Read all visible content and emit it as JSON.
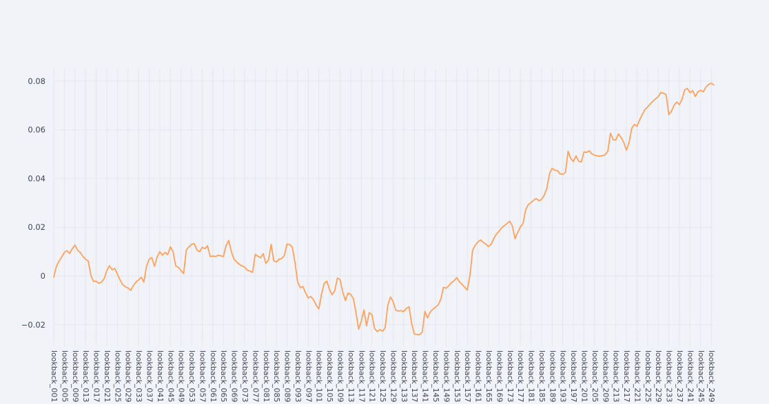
{
  "chart": {
    "title": "",
    "line_color": "#ffa15a",
    "background_color": "#f1f3f8",
    "grid_color": "#e3e6ee",
    "tick_label_color": "#3d4656"
  },
  "chart_data": {
    "type": "line",
    "title": "",
    "xlabel": "",
    "ylabel": "",
    "legend": false,
    "grid": true,
    "n_points": 250,
    "x_tick_every": 4,
    "x_tick_labels": [
      "lookback_001",
      "lookback_005",
      "lookback_009",
      "lookback_013",
      "lookback_017",
      "lookback_021",
      "lookback_025",
      "lookback_029",
      "lookback_033",
      "lookback_037",
      "lookback_041",
      "lookback_045",
      "lookback_049",
      "lookback_053",
      "lookback_057",
      "lookback_061",
      "lookback_065",
      "lookback_069",
      "lookback_073",
      "lookback_077",
      "lookback_081",
      "lookback_085",
      "lookback_089",
      "lookback_093",
      "lookback_097",
      "lookback_101",
      "lookback_105",
      "lookback_109",
      "lookback_113",
      "lookback_117",
      "lookback_121",
      "lookback_125",
      "lookback_129",
      "lookback_133",
      "lookback_137",
      "lookback_141",
      "lookback_145",
      "lookback_149",
      "lookback_153",
      "lookback_157",
      "lookback_161",
      "lookback_165",
      "lookback_169",
      "lookback_173",
      "lookback_177",
      "lookback_181",
      "lookback_185",
      "lookback_189",
      "lookback_193",
      "lookback_197",
      "lookback_201",
      "lookback_205",
      "lookback_209",
      "lookback_213",
      "lookback_217",
      "lookback_221",
      "lookback_225",
      "lookback_229",
      "lookback_233",
      "lookback_237",
      "lookback_241",
      "lookback_245",
      "lookback_249"
    ],
    "y_ticks": [
      -0.02,
      0,
      0.02,
      0.04,
      0.06,
      0.08
    ],
    "y_tick_labels": [
      "−0.02",
      "0",
      "0.02",
      "0.04",
      "0.06",
      "0.08"
    ],
    "ylim": [
      -0.0288,
      0.0853
    ],
    "values": [
      -0.0005,
      0.004,
      0.0061,
      0.0078,
      0.0097,
      0.0104,
      0.0092,
      0.0112,
      0.0127,
      0.0106,
      0.0097,
      0.008,
      0.0069,
      0.0062,
      0.0003,
      -0.0022,
      -0.0021,
      -0.003,
      -0.0025,
      -0.0011,
      0.0022,
      0.0042,
      0.0026,
      0.0031,
      0.0008,
      -0.0016,
      -0.0035,
      -0.0044,
      -0.0049,
      -0.0059,
      -0.004,
      -0.0025,
      -0.0016,
      -0.0005,
      -0.0025,
      0.0041,
      0.0069,
      0.0075,
      0.004,
      0.0078,
      0.01,
      0.0085,
      0.0097,
      0.0088,
      0.012,
      0.01,
      0.0042,
      0.0036,
      0.0022,
      0.001,
      0.0107,
      0.012,
      0.013,
      0.0133,
      0.0107,
      0.0099,
      0.0118,
      0.0112,
      0.0124,
      0.008,
      0.0082,
      0.008,
      0.0085,
      0.0083,
      0.008,
      0.0125,
      0.0146,
      0.01,
      0.0069,
      0.0058,
      0.0048,
      0.0041,
      0.0037,
      0.0024,
      0.002,
      0.0015,
      0.0089,
      0.0081,
      0.0075,
      0.0092,
      0.0052,
      0.0066,
      0.013,
      0.0062,
      0.0058,
      0.0069,
      0.0072,
      0.0085,
      0.0131,
      0.0129,
      0.0118,
      0.0055,
      -0.0025,
      -0.0048,
      -0.0043,
      -0.007,
      -0.009,
      -0.0084,
      -0.0098,
      -0.012,
      -0.0135,
      -0.0075,
      -0.003,
      -0.0021,
      -0.0055,
      -0.0077,
      -0.006,
      -0.0008,
      -0.0015,
      -0.0065,
      -0.0101,
      -0.007,
      -0.0075,
      -0.0092,
      -0.015,
      -0.0218,
      -0.0185,
      -0.0139,
      -0.0205,
      -0.015,
      -0.0158,
      -0.0215,
      -0.0228,
      -0.022,
      -0.0227,
      -0.0212,
      -0.012,
      -0.0086,
      -0.0105,
      -0.014,
      -0.0144,
      -0.0142,
      -0.0146,
      -0.0133,
      -0.0126,
      -0.0195,
      -0.0238,
      -0.024,
      -0.0241,
      -0.023,
      -0.0145,
      -0.0172,
      -0.0148,
      -0.0136,
      -0.0128,
      -0.0119,
      -0.0095,
      -0.0046,
      -0.005,
      -0.004,
      -0.0027,
      -0.002,
      -0.0006,
      -0.0024,
      -0.0034,
      -0.0046,
      -0.0057,
      0.0003,
      0.0106,
      0.0126,
      0.014,
      0.0148,
      0.0138,
      0.0131,
      0.0121,
      0.013,
      0.0155,
      0.0172,
      0.0184,
      0.0198,
      0.0207,
      0.0216,
      0.0225,
      0.0205,
      0.0153,
      0.0178,
      0.0202,
      0.0215,
      0.0272,
      0.0293,
      0.0301,
      0.0311,
      0.0318,
      0.0309,
      0.0314,
      0.0332,
      0.036,
      0.042,
      0.0442,
      0.0434,
      0.0433,
      0.0419,
      0.0417,
      0.0424,
      0.0512,
      0.0482,
      0.047,
      0.0493,
      0.0471,
      0.0468,
      0.0509,
      0.0507,
      0.0514,
      0.0501,
      0.0496,
      0.0493,
      0.0492,
      0.0494,
      0.0497,
      0.0512,
      0.0586,
      0.0559,
      0.0558,
      0.0583,
      0.0569,
      0.0548,
      0.0517,
      0.0547,
      0.0606,
      0.0622,
      0.0614,
      0.0641,
      0.0663,
      0.0683,
      0.0694,
      0.0706,
      0.0717,
      0.0727,
      0.0736,
      0.0753,
      0.075,
      0.0744,
      0.0662,
      0.0676,
      0.0701,
      0.0714,
      0.0703,
      0.0726,
      0.0764,
      0.077,
      0.0752,
      0.0761,
      0.0737,
      0.0756,
      0.0762,
      0.0756,
      0.0775,
      0.0786,
      0.0791,
      0.0784
    ]
  }
}
